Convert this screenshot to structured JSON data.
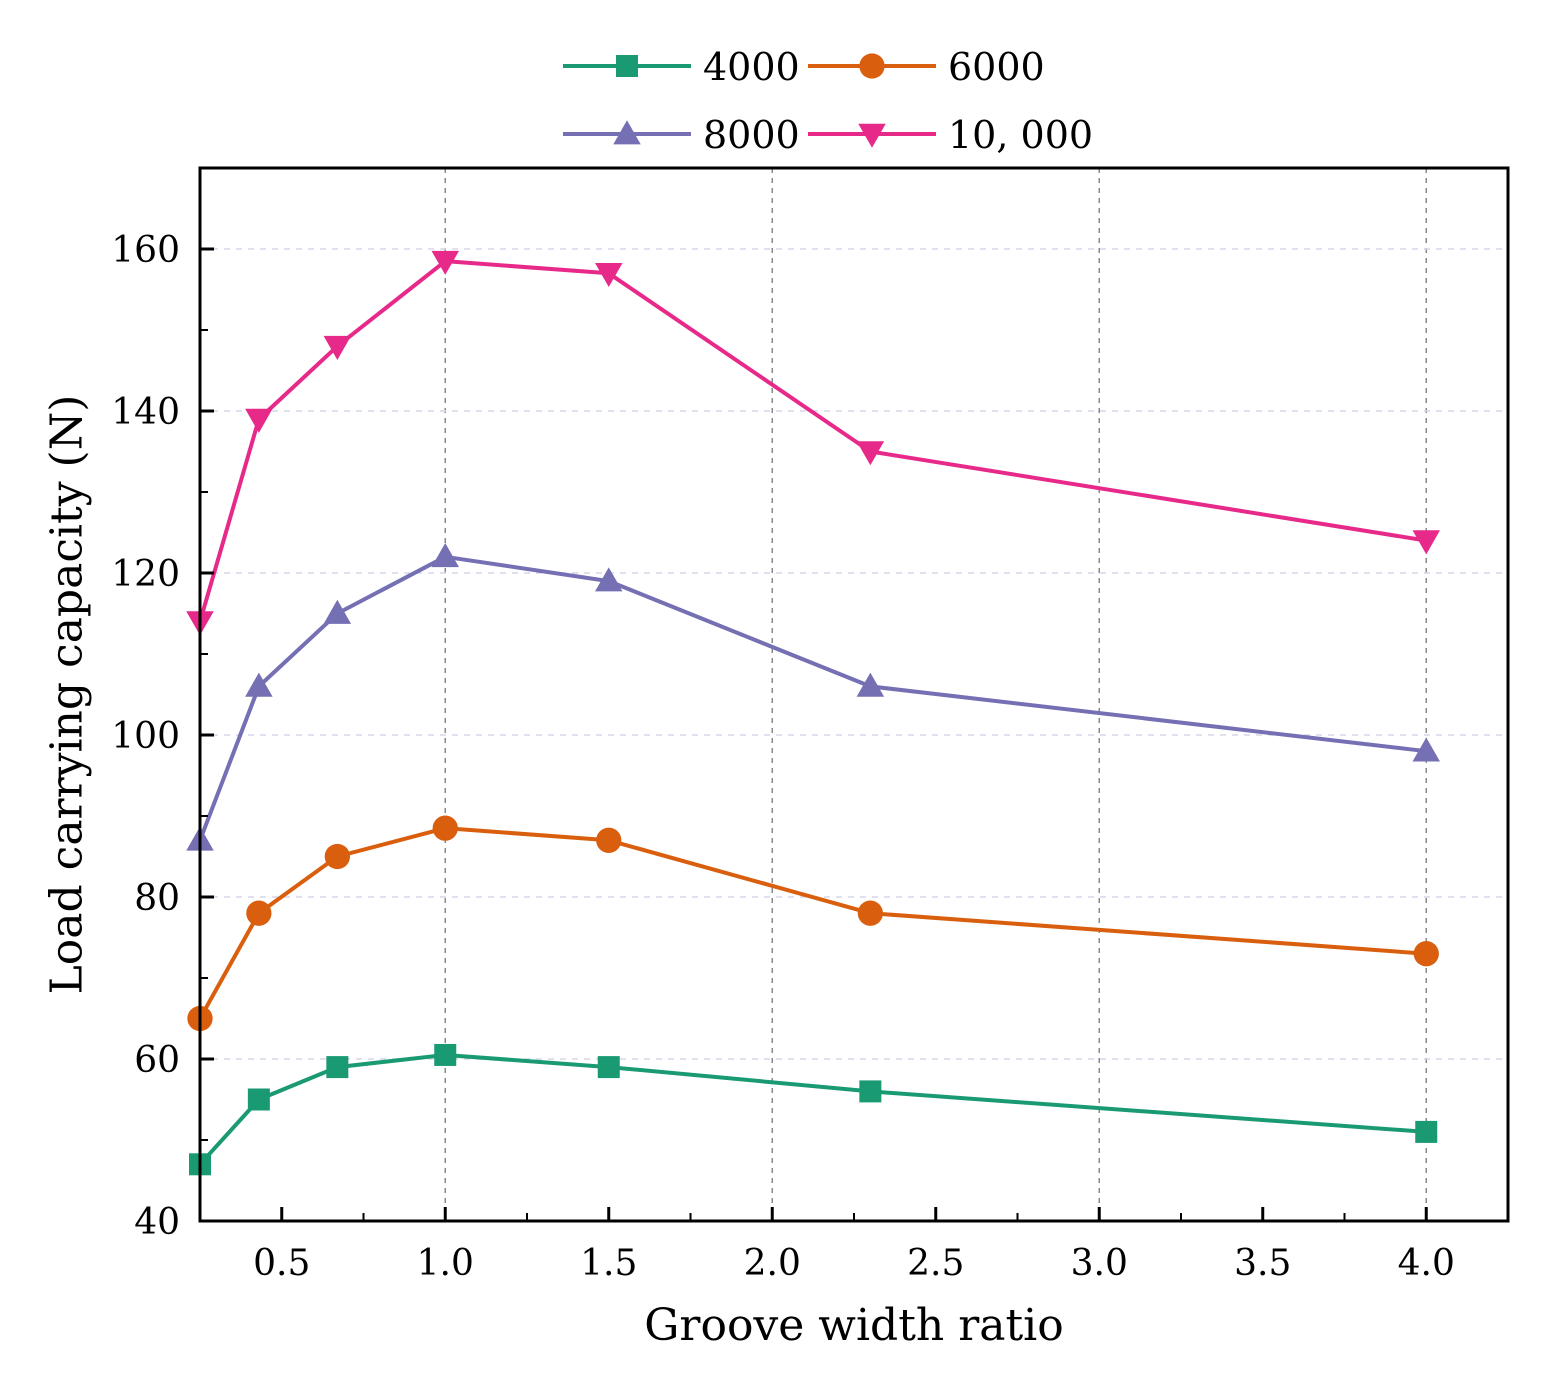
{
  "chart_data": {
    "type": "line",
    "title": "",
    "xlabel": "Groove width ratio",
    "ylabel": "Load carrying capacity (N)",
    "xlim": [
      0.25,
      4.25
    ],
    "ylim": [
      40,
      170
    ],
    "xticks": [
      0.5,
      1.0,
      1.5,
      2.0,
      2.5,
      3.0,
      3.5,
      4.0
    ],
    "xtick_labels": [
      "0.5",
      "1.0",
      "1.5",
      "2.0",
      "2.5",
      "3.0",
      "3.5",
      "4.0"
    ],
    "yticks": [
      40,
      60,
      80,
      100,
      120,
      140,
      160
    ],
    "ytick_labels": [
      "40",
      "60",
      "80",
      "100",
      "120",
      "140",
      "160"
    ],
    "grid": "dashed",
    "legend_position": "top-center",
    "x": [
      0.25,
      0.43,
      0.67,
      1.0,
      1.5,
      2.3,
      4.0
    ],
    "series": [
      {
        "name": "4000",
        "color": "#1a9a73",
        "marker": "square",
        "values": [
          47,
          55,
          59,
          60.5,
          59,
          56,
          51
        ]
      },
      {
        "name": "6000",
        "color": "#d95f0e",
        "marker": "circle",
        "values": [
          65,
          78,
          85,
          88.5,
          87,
          78,
          73
        ]
      },
      {
        "name": "8000",
        "color": "#7570b3",
        "marker": "triangle-up",
        "values": [
          87,
          106,
          115,
          122,
          119,
          106,
          98
        ]
      },
      {
        "name": "10, 000",
        "color": "#e7298a",
        "marker": "triangle-down",
        "values": [
          114,
          139,
          148,
          158.5,
          157,
          135,
          124
        ]
      }
    ]
  }
}
